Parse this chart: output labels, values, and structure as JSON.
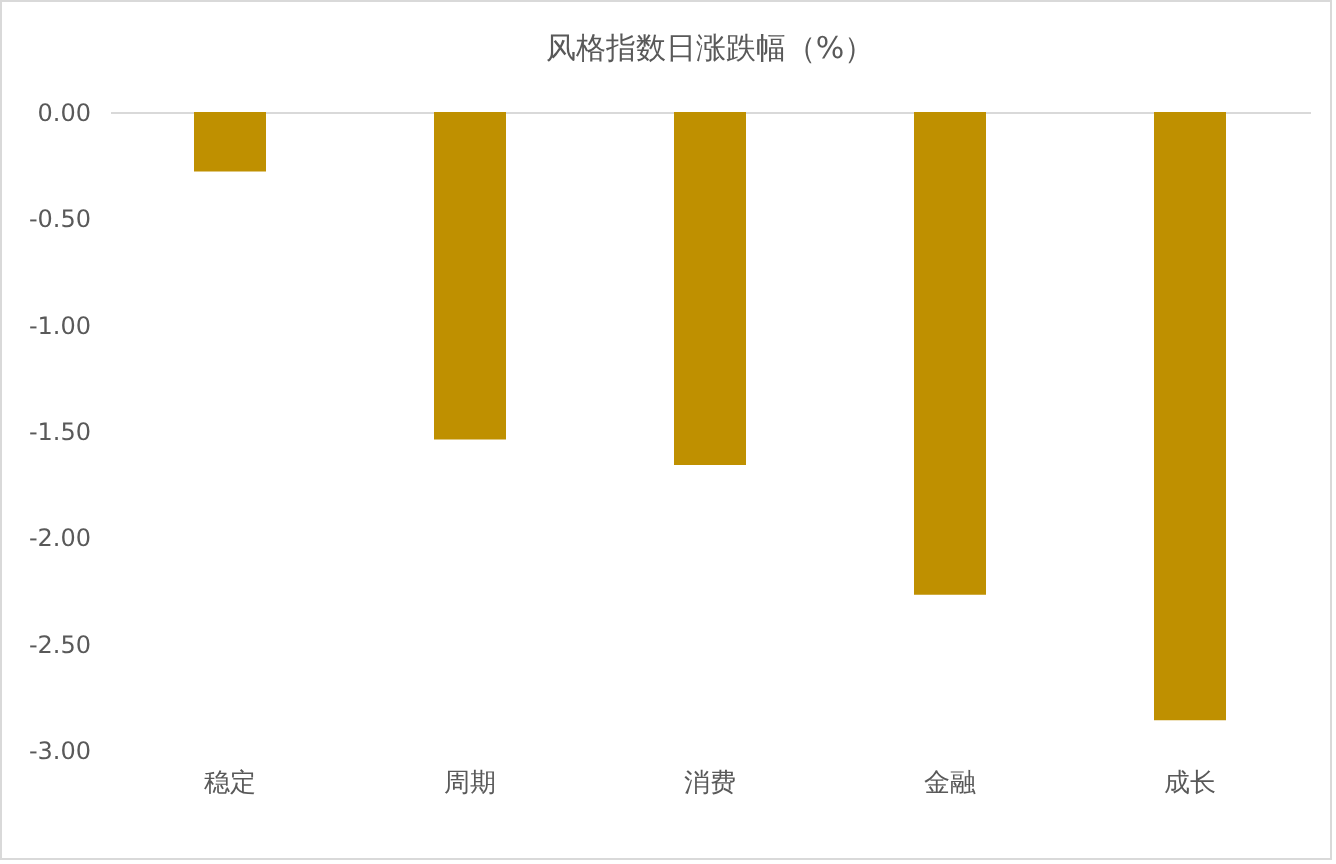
{
  "chart_data": {
    "type": "bar",
    "title": "风格指数日涨跌幅（%）",
    "categories": [
      "稳定",
      "周期",
      "消费",
      "金融",
      "成长"
    ],
    "values": [
      -0.28,
      -1.54,
      -1.66,
      -2.27,
      -2.86
    ],
    "color": "#bf9000",
    "ylim": [
      -3,
      0
    ],
    "yticks": [
      {
        "value": 0,
        "label": "0.00"
      },
      {
        "value": -0.5,
        "label": "-0.50"
      },
      {
        "value": -1,
        "label": "-1.00"
      },
      {
        "value": -1.5,
        "label": "-1.50"
      },
      {
        "value": -2,
        "label": "-2.00"
      },
      {
        "value": -2.5,
        "label": "-2.50"
      },
      {
        "value": -3,
        "label": "-3.00"
      }
    ],
    "grid": false
  }
}
